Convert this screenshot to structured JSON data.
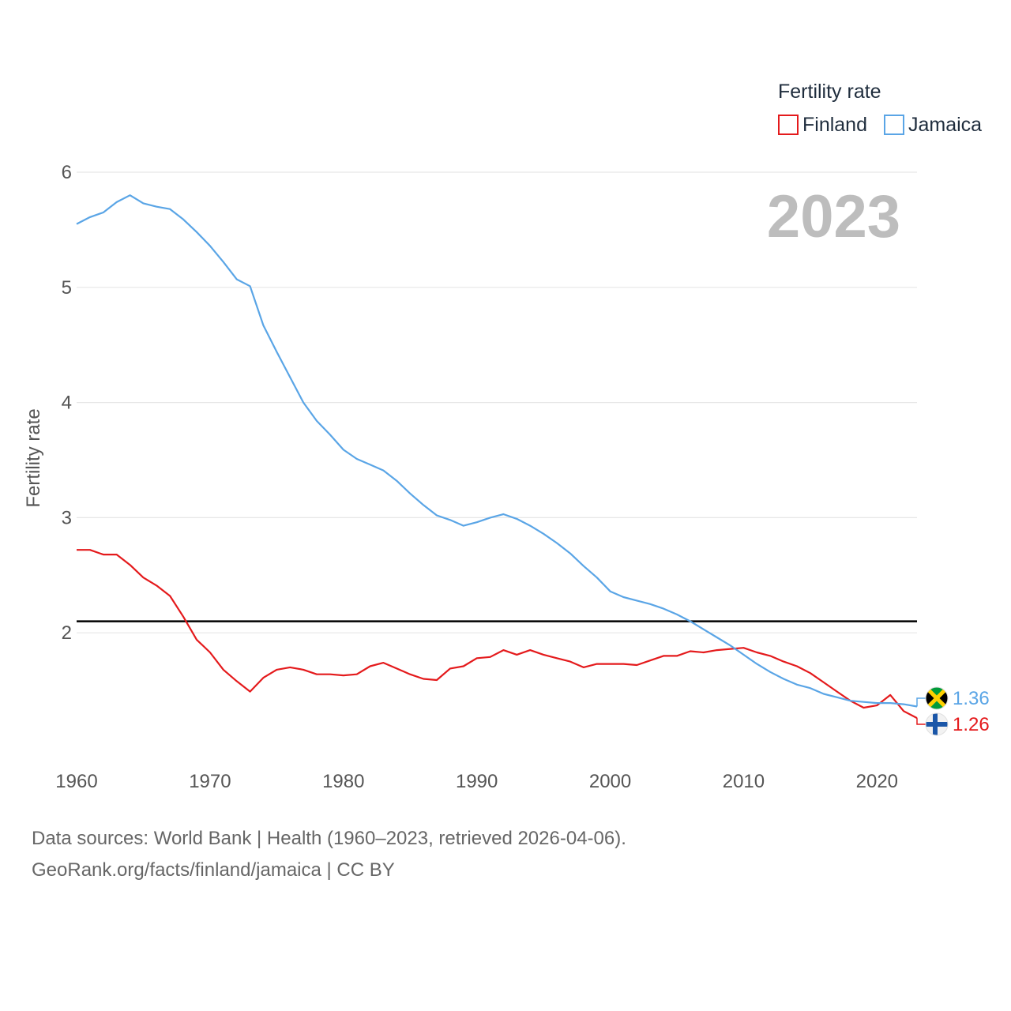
{
  "legend": {
    "title": "Fertility rate",
    "items": [
      {
        "label": "Finland",
        "color": "#e41a1c"
      },
      {
        "label": "Jamaica",
        "color": "#5aa5e6"
      }
    ]
  },
  "year_label": "2023",
  "footer": {
    "line1": "Data sources: World Bank | Health (1960–2023, retrieved 2026-04-06).",
    "line2": "GeoRank.org/facts/finland/jamaica | CC BY"
  },
  "chart_data": {
    "type": "line",
    "title": "",
    "xlabel": "",
    "ylabel": "Fertility rate",
    "xlim": [
      1960,
      2023
    ],
    "ylim": [
      1,
      6
    ],
    "x_ticks": [
      1960,
      1970,
      1980,
      1990,
      2000,
      2010,
      2020
    ],
    "y_ticks": [
      2,
      3,
      4,
      5,
      6
    ],
    "grid": true,
    "legend_position": "top-right",
    "reference_line": {
      "y": 2.1,
      "color": "#000000"
    },
    "x": [
      1960,
      1961,
      1962,
      1963,
      1964,
      1965,
      1966,
      1967,
      1968,
      1969,
      1970,
      1971,
      1972,
      1973,
      1974,
      1975,
      1976,
      1977,
      1978,
      1979,
      1980,
      1981,
      1982,
      1983,
      1984,
      1985,
      1986,
      1987,
      1988,
      1989,
      1990,
      1991,
      1992,
      1993,
      1994,
      1995,
      1996,
      1997,
      1998,
      1999,
      2000,
      2001,
      2002,
      2003,
      2004,
      2005,
      2006,
      2007,
      2008,
      2009,
      2010,
      2011,
      2012,
      2013,
      2014,
      2015,
      2016,
      2017,
      2018,
      2019,
      2020,
      2021,
      2022,
      2023
    ],
    "series": [
      {
        "name": "Finland",
        "color": "#e41a1c",
        "end_value_label": "1.26",
        "flag": "finland-flag",
        "values": [
          2.72,
          2.72,
          2.68,
          2.68,
          2.59,
          2.48,
          2.41,
          2.32,
          2.14,
          1.94,
          1.83,
          1.68,
          1.58,
          1.49,
          1.61,
          1.68,
          1.7,
          1.68,
          1.64,
          1.64,
          1.63,
          1.64,
          1.71,
          1.74,
          1.69,
          1.64,
          1.6,
          1.59,
          1.69,
          1.71,
          1.78,
          1.79,
          1.85,
          1.81,
          1.85,
          1.81,
          1.78,
          1.75,
          1.7,
          1.73,
          1.73,
          1.73,
          1.72,
          1.76,
          1.8,
          1.8,
          1.84,
          1.83,
          1.85,
          1.86,
          1.87,
          1.83,
          1.8,
          1.75,
          1.71,
          1.65,
          1.57,
          1.49,
          1.41,
          1.35,
          1.37,
          1.46,
          1.32,
          1.26
        ]
      },
      {
        "name": "Jamaica",
        "color": "#5aa5e6",
        "end_value_label": "1.36",
        "flag": "jamaica-flag",
        "values": [
          5.55,
          5.61,
          5.65,
          5.74,
          5.8,
          5.73,
          5.7,
          5.68,
          5.59,
          5.48,
          5.36,
          5.22,
          5.07,
          5.01,
          4.67,
          4.44,
          4.22,
          4.0,
          3.84,
          3.72,
          3.59,
          3.51,
          3.46,
          3.41,
          3.32,
          3.21,
          3.11,
          3.02,
          2.98,
          2.93,
          2.96,
          3.0,
          3.03,
          2.99,
          2.93,
          2.86,
          2.78,
          2.69,
          2.58,
          2.48,
          2.36,
          2.31,
          2.28,
          2.25,
          2.21,
          2.16,
          2.1,
          2.03,
          1.96,
          1.89,
          1.81,
          1.73,
          1.66,
          1.6,
          1.55,
          1.52,
          1.47,
          1.44,
          1.41,
          1.4,
          1.39,
          1.39,
          1.38,
          1.36
        ]
      }
    ]
  }
}
